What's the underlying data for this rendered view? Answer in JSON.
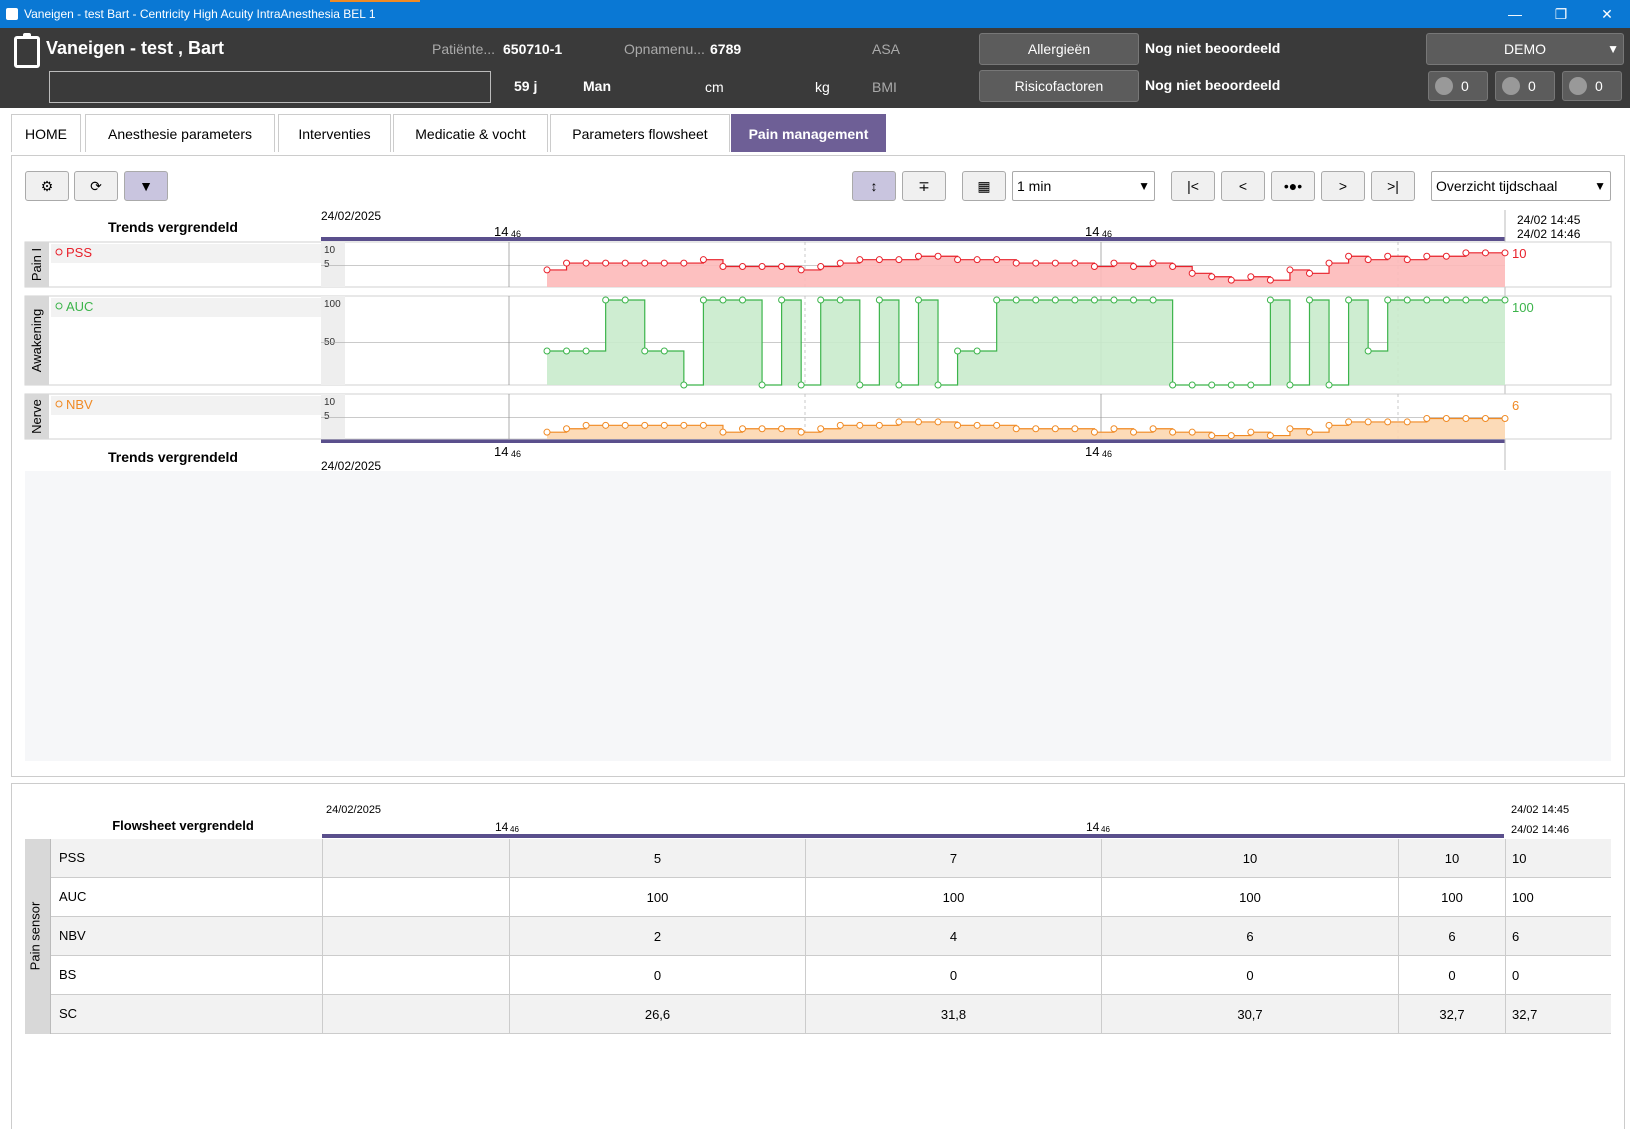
{
  "window": {
    "title": "Vaneigen - test  Bart - Centricity High Acuity IntraAnesthesia BEL 1"
  },
  "patient": {
    "name": "Vaneigen - test , Bart",
    "patient_label": "Patiënte...",
    "patient_id": "650710-1",
    "admission_label": "Opnamenu...",
    "admission_no": "6789",
    "asa_label": "ASA",
    "age": "59 j",
    "sex": "Man",
    "height_unit": "cm",
    "weight_unit": "kg",
    "bmi_label": "BMI",
    "allergies_button": "Allergieën",
    "allergies_status": "Nog niet beoordeeld",
    "risk_button": "Risicofactoren",
    "risk_status": "Nog niet beoordeeld",
    "demo_label": "DEMO",
    "count_tools": "0",
    "count_meds": "0",
    "count_checks": "0"
  },
  "tabs": [
    {
      "label": "HOME"
    },
    {
      "label": "Anesthesie parameters"
    },
    {
      "label": "Interventies"
    },
    {
      "label": "Medicatie & vocht"
    },
    {
      "label": "Parameters flowsheet"
    },
    {
      "label": "Pain management"
    }
  ],
  "toolbar": {
    "interval": "1 min",
    "timescale": "Overzicht tijdschaal"
  },
  "trends": {
    "locked_label": "Trends vergrendeld",
    "date": "24/02/2025",
    "time_hour": "14",
    "time_min": "46",
    "end_time_1": "24/02 14:45",
    "end_time_2": "24/02 14:46",
    "groups": [
      {
        "group": "Pain I",
        "param": "PSS",
        "color": "#e8202a",
        "fill": "#fdb9b9",
        "ticks": [
          "10",
          "5"
        ],
        "current": "10"
      },
      {
        "group": "Awakening",
        "param": "AUC",
        "color": "#3cb44b",
        "fill": "#c9ebcc",
        "ticks": [
          "100",
          "50"
        ],
        "current": "100"
      },
      {
        "group": "Nerve",
        "param": "NBV",
        "color": "#f08a24",
        "fill": "#fcd7b0",
        "ticks": [
          "10",
          "5"
        ],
        "current": "6"
      }
    ]
  },
  "chart_data": [
    {
      "type": "line",
      "title": "PSS",
      "ylim": [
        0,
        12
      ],
      "x": [
        0,
        1,
        2,
        3,
        4,
        5,
        6,
        7,
        8,
        9,
        10,
        11,
        12,
        13,
        14,
        15,
        16,
        17,
        18,
        19,
        20,
        21,
        22,
        23,
        24,
        25,
        26,
        27,
        28,
        29,
        30,
        31,
        32,
        33,
        34,
        35,
        36,
        37,
        38,
        39,
        40,
        41,
        42,
        43,
        44,
        45,
        46,
        47,
        48,
        49
      ],
      "values": [
        5,
        7,
        7,
        7,
        7,
        7,
        7,
        7,
        8,
        6,
        6,
        6,
        6,
        5,
        6,
        7,
        8,
        8,
        8,
        9,
        9,
        8,
        8,
        8,
        7,
        7,
        7,
        7,
        6,
        7,
        6,
        7,
        6,
        4,
        3,
        2,
        3,
        2,
        5,
        4,
        7,
        9,
        8,
        9,
        8,
        9,
        9,
        10,
        10,
        10
      ]
    },
    {
      "type": "line",
      "title": "AUC",
      "ylim": [
        0,
        100
      ],
      "x": [
        0,
        1,
        2,
        3,
        4,
        5,
        6,
        7,
        8,
        9,
        10,
        11,
        12,
        13,
        14,
        15,
        16,
        17,
        18,
        19,
        20,
        21,
        22,
        23,
        24,
        25,
        26,
        27,
        28,
        29,
        30,
        31,
        32,
        33,
        34,
        35,
        36,
        37,
        38,
        39,
        40,
        41,
        42,
        43,
        44,
        45,
        46,
        47,
        48,
        49
      ],
      "values": [
        40,
        40,
        40,
        100,
        100,
        40,
        40,
        0,
        100,
        100,
        100,
        0,
        100,
        0,
        100,
        100,
        0,
        100,
        0,
        100,
        0,
        40,
        40,
        100,
        100,
        100,
        100,
        100,
        100,
        100,
        100,
        100,
        0,
        0,
        0,
        0,
        0,
        100,
        0,
        100,
        0,
        100,
        40,
        100,
        100,
        100,
        100,
        100,
        100,
        100
      ]
    },
    {
      "type": "line",
      "title": "NBV",
      "ylim": [
        0,
        12
      ],
      "x": [
        0,
        1,
        2,
        3,
        4,
        5,
        6,
        7,
        8,
        9,
        10,
        11,
        12,
        13,
        14,
        15,
        16,
        17,
        18,
        19,
        20,
        21,
        22,
        23,
        24,
        25,
        26,
        27,
        28,
        29,
        30,
        31,
        32,
        33,
        34,
        35,
        36,
        37,
        38,
        39,
        40,
        41,
        42,
        43,
        44,
        45,
        46,
        47,
        48,
        49
      ],
      "values": [
        2,
        3,
        4,
        4,
        4,
        4,
        4,
        4,
        4,
        2,
        3,
        3,
        3,
        2,
        3,
        4,
        4,
        4,
        5,
        5,
        5,
        4,
        4,
        4,
        3,
        3,
        3,
        3,
        2,
        3,
        2,
        3,
        2,
        2,
        1,
        1,
        2,
        1,
        3,
        2,
        4,
        5,
        5,
        5,
        5,
        6,
        6,
        6,
        6,
        6
      ]
    }
  ],
  "flowsheet": {
    "locked_label": "Flowsheet vergrendeld",
    "date": "24/02/2025",
    "time_hour": "14",
    "time_min": "46",
    "end_time_1": "24/02 14:45",
    "end_time_2": "24/02 14:46",
    "group": "Pain sensor",
    "rows": [
      {
        "name": "PSS",
        "values": [
          "",
          "5",
          "7",
          "10",
          "10",
          "10"
        ]
      },
      {
        "name": "AUC",
        "values": [
          "",
          "100",
          "100",
          "100",
          "100",
          "100"
        ]
      },
      {
        "name": "NBV",
        "values": [
          "",
          "2",
          "4",
          "6",
          "6",
          "6"
        ]
      },
      {
        "name": "BS",
        "values": [
          "",
          "0",
          "0",
          "0",
          "0",
          "0"
        ]
      },
      {
        "name": "SC",
        "values": [
          "",
          "26,6",
          "31,8",
          "30,7",
          "32,7",
          "32,7"
        ]
      }
    ]
  }
}
